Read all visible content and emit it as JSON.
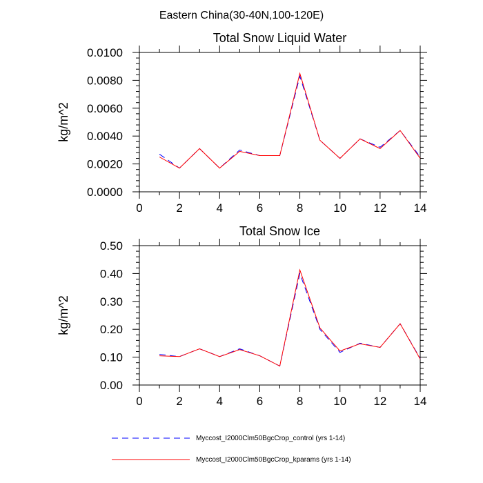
{
  "suptitle": "Eastern China(30-40N,100-120E)",
  "legend": {
    "entries": [
      {
        "label": "Myccost_I2000Clm50BgcCrop_control (yrs 1-14)",
        "color": "#0000ff",
        "style": "dashed"
      },
      {
        "label": "Myccost_I2000Clm50BgcCrop_kparams (yrs 1-14)",
        "color": "#ff0000",
        "style": "solid"
      }
    ]
  },
  "chart_data": [
    {
      "type": "line",
      "title": "Total Snow Liquid Water",
      "ylabel": "kg/m^2",
      "xlim": [
        0,
        14
      ],
      "ylim": [
        0,
        0.01
      ],
      "xticks": [
        0,
        2,
        4,
        6,
        8,
        10,
        12,
        14
      ],
      "xtick_labels": [
        "0",
        "2",
        "4",
        "6",
        "8",
        "10",
        "12",
        "14"
      ],
      "yticks": [
        0,
        0.002,
        0.004,
        0.006,
        0.008,
        0.01
      ],
      "ytick_labels": [
        "0.0000",
        "0.0020",
        "0.0040",
        "0.0060",
        "0.0080",
        "0.0100"
      ],
      "x": [
        1,
        2,
        3,
        4,
        5,
        6,
        7,
        8,
        9,
        10,
        11,
        12,
        13,
        14
      ],
      "series": [
        {
          "name": "Myccost_I2000Clm50BgcCrop_control (yrs 1-14)",
          "color": "#0000ff",
          "style": "dashed",
          "values": [
            0.0027,
            0.0017,
            0.0031,
            0.0017,
            0.003,
            0.0026,
            0.0026,
            0.0083,
            0.0037,
            0.0024,
            0.0038,
            0.0032,
            0.0044,
            0.0025
          ]
        },
        {
          "name": "Myccost_I2000Clm50BgcCrop_kparams (yrs 1-14)",
          "color": "#ff0000",
          "style": "solid",
          "values": [
            0.0025,
            0.0017,
            0.0031,
            0.0017,
            0.0029,
            0.0026,
            0.0026,
            0.0085,
            0.0037,
            0.0024,
            0.0038,
            0.0031,
            0.0044,
            0.0024
          ]
        }
      ]
    },
    {
      "type": "line",
      "title": "Total Snow Ice",
      "ylabel": "kg/m^2",
      "xlim": [
        0,
        14
      ],
      "ylim": [
        0,
        0.5
      ],
      "xticks": [
        0,
        2,
        4,
        6,
        8,
        10,
        12,
        14
      ],
      "xtick_labels": [
        "0",
        "2",
        "4",
        "6",
        "8",
        "10",
        "12",
        "14"
      ],
      "yticks": [
        0,
        0.1,
        0.2,
        0.3,
        0.4,
        0.5
      ],
      "ytick_labels": [
        "0.00",
        "0.10",
        "0.20",
        "0.30",
        "0.40",
        "0.50"
      ],
      "x": [
        1,
        2,
        3,
        4,
        5,
        6,
        7,
        8,
        9,
        10,
        11,
        12,
        13,
        14
      ],
      "series": [
        {
          "name": "Myccost_I2000Clm50BgcCrop_control (yrs 1-14)",
          "color": "#0000ff",
          "style": "dashed",
          "values": [
            0.11,
            0.102,
            0.13,
            0.102,
            0.13,
            0.105,
            0.068,
            0.4,
            0.2,
            0.117,
            0.15,
            0.135,
            0.22,
            0.095
          ]
        },
        {
          "name": "Myccost_I2000Clm50BgcCrop_kparams (yrs 1-14)",
          "color": "#ff0000",
          "style": "solid",
          "values": [
            0.105,
            0.102,
            0.13,
            0.102,
            0.127,
            0.105,
            0.068,
            0.413,
            0.205,
            0.122,
            0.148,
            0.135,
            0.22,
            0.093
          ]
        }
      ]
    }
  ]
}
